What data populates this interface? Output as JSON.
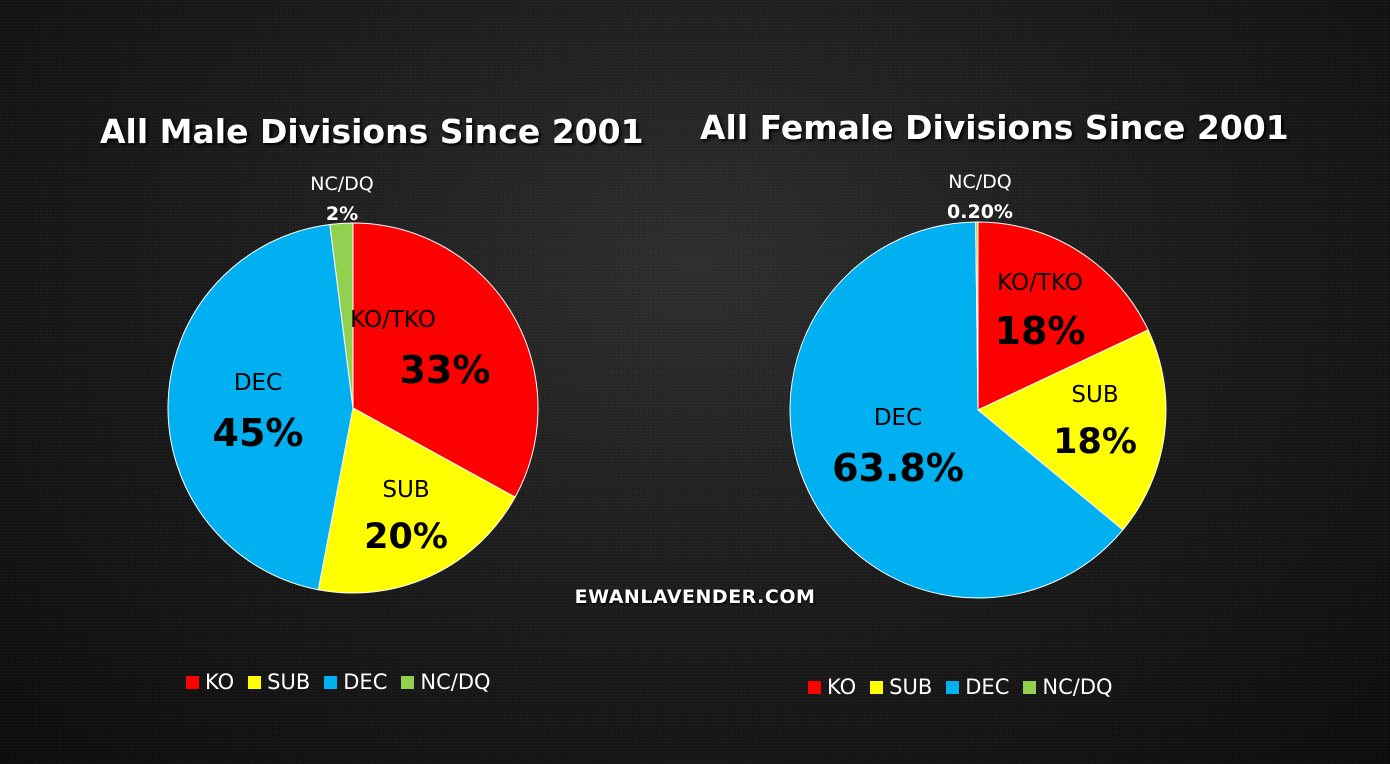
{
  "chart_data": [
    {
      "type": "pie",
      "title": "All Male Divisions Since 2001",
      "slices": [
        {
          "label": "KO/TKO",
          "value": 33,
          "value_label": "33%",
          "color": "#FF0000"
        },
        {
          "label": "SUB",
          "value": 20,
          "value_label": "20%",
          "color": "#FFFF00"
        },
        {
          "label": "DEC",
          "value": 45,
          "value_label": "45%",
          "color": "#00B0F0"
        },
        {
          "label": "NC/DQ",
          "value": 2,
          "value_label": "2%",
          "color": "#92D050"
        }
      ],
      "legend": [
        "KO",
        "SUB",
        "DEC",
        "NC/DQ"
      ],
      "legend_position": "bottom"
    },
    {
      "type": "pie",
      "title": "All Female Divisions Since 2001",
      "slices": [
        {
          "label": "KO/TKO",
          "value": 18,
          "value_label": "18%",
          "color": "#FF0000"
        },
        {
          "label": "SUB",
          "value": 18,
          "value_label": "18%",
          "color": "#FFFF00"
        },
        {
          "label": "DEC",
          "value": 63.8,
          "value_label": "63.8%",
          "color": "#00B0F0"
        },
        {
          "label": "NC/DQ",
          "value": 0.2,
          "value_label": "0.20%",
          "color": "#92D050"
        }
      ],
      "legend": [
        "KO",
        "SUB",
        "DEC",
        "NC/DQ"
      ],
      "legend_position": "bottom"
    }
  ],
  "watermark": "EWANLAVENDER.COM"
}
